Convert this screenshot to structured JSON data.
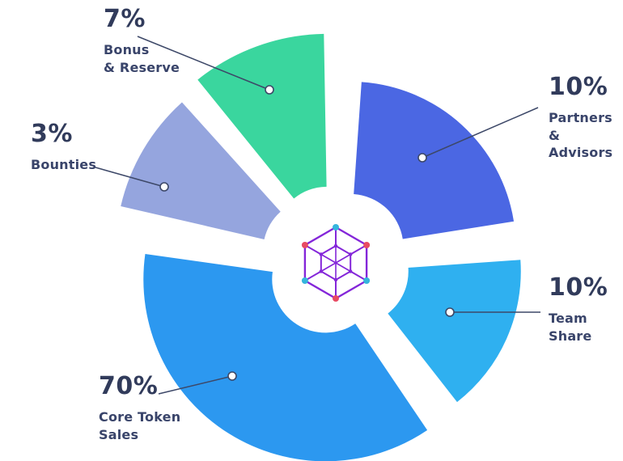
{
  "chart_data": {
    "type": "pie",
    "donut": true,
    "unit": "%",
    "center_icon": "hexagon-network-logo",
    "legend_position": "callout-labels",
    "slices": [
      {
        "label": "Bonus & Reserve",
        "label_lines": [
          "Bonus",
          "& Reserve"
        ],
        "value": 7,
        "pct_label": "7%",
        "color": "#3ad69e"
      },
      {
        "label": "Partners & Advisors",
        "label_lines": [
          "Partners",
          "& Advisors"
        ],
        "value": 10,
        "pct_label": "10%",
        "color": "#4b67e3"
      },
      {
        "label": "Team Share",
        "label_lines": [
          "Team",
          "Share"
        ],
        "value": 10,
        "pct_label": "10%",
        "color": "#2fb0f0"
      },
      {
        "label": "Core Token Sales",
        "label_lines": [
          "Core Token",
          "Sales"
        ],
        "value": 70,
        "pct_label": "70%",
        "color": "#2c98f0"
      },
      {
        "label": "Bounties",
        "label_lines": [
          "Bounties"
        ],
        "value": 3,
        "pct_label": "3%",
        "color": "#95a5de"
      }
    ]
  },
  "style": {
    "background": "#ffffff",
    "label_color": "#323c5e",
    "callout_line_color": "#3d4868",
    "logo": {
      "line_color": "#8426d9",
      "node_cyan": "#35b5dd",
      "node_red": "#e84a63"
    }
  }
}
